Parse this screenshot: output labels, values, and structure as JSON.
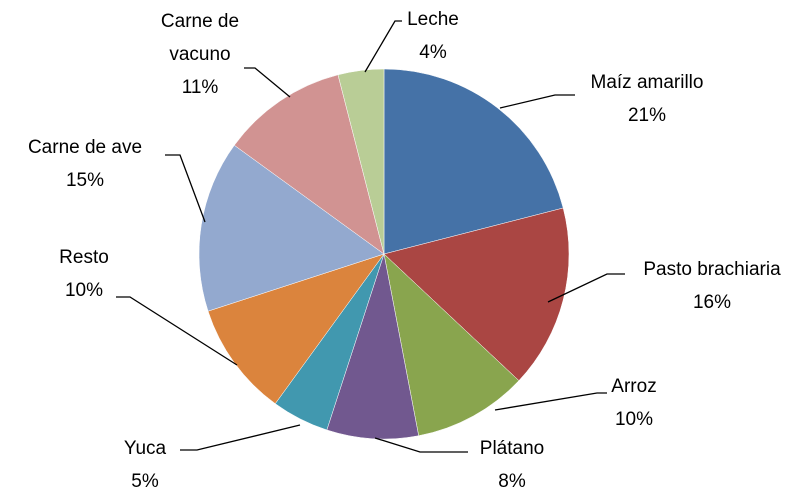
{
  "chart_data": {
    "type": "pie",
    "categories": [
      "Maíz amarillo",
      "Pasto brachiaria",
      "Arroz",
      "Plátano",
      "Yuca",
      "Resto",
      "Carne de ave",
      "Carne de vacuno",
      "Leche"
    ],
    "values": [
      21,
      16,
      10,
      8,
      5,
      10,
      15,
      11,
      4
    ],
    "value_labels": [
      "21%",
      "16%",
      "10%",
      "8%",
      "5%",
      "10%",
      "15%",
      "11%",
      "4%"
    ],
    "colors": [
      "#4572A7",
      "#AA4643",
      "#89A54E",
      "#71588F",
      "#4198AF",
      "#DB843D",
      "#93A9CF",
      "#D19392",
      "#B9CD96"
    ]
  }
}
